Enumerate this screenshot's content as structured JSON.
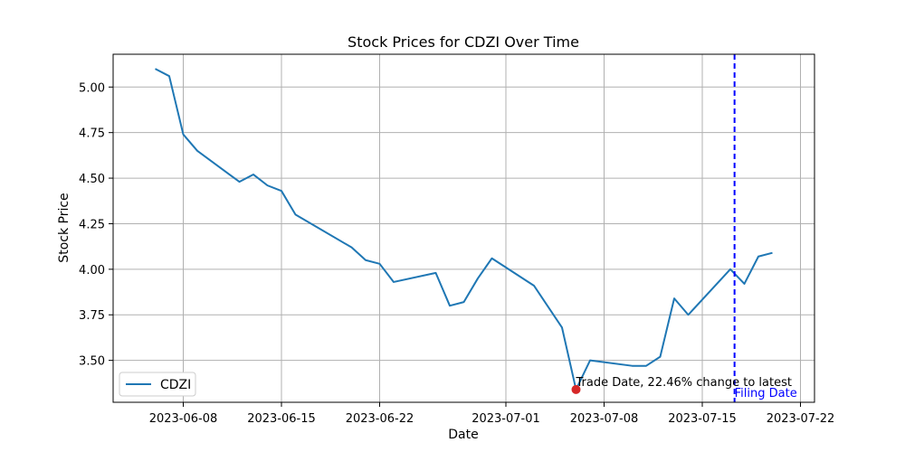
{
  "chart_data": {
    "type": "line",
    "title": "Stock Prices for CDZI Over Time",
    "xlabel": "Date",
    "ylabel": "Stock Price",
    "x_range": [
      "2023-06-03",
      "2023-07-23"
    ],
    "ylim": [
      3.27,
      5.18
    ],
    "x_ticks": [
      "2023-06-08",
      "2023-06-15",
      "2023-06-22",
      "2023-07-01",
      "2023-07-08",
      "2023-07-15",
      "2023-07-22"
    ],
    "y_ticks": [
      "3.50",
      "3.75",
      "4.00",
      "4.25",
      "4.50",
      "4.75",
      "5.00"
    ],
    "grid": true,
    "legend_position": "lower left",
    "series": [
      {
        "name": "CDZI",
        "color": "#1f77b4",
        "points": [
          {
            "date": "2023-06-06",
            "value": 5.1
          },
          {
            "date": "2023-06-07",
            "value": 5.06
          },
          {
            "date": "2023-06-08",
            "value": 4.74
          },
          {
            "date": "2023-06-09",
            "value": 4.65
          },
          {
            "date": "2023-06-12",
            "value": 4.48
          },
          {
            "date": "2023-06-13",
            "value": 4.52
          },
          {
            "date": "2023-06-14",
            "value": 4.46
          },
          {
            "date": "2023-06-15",
            "value": 4.43
          },
          {
            "date": "2023-06-16",
            "value": 4.3
          },
          {
            "date": "2023-06-20",
            "value": 4.12
          },
          {
            "date": "2023-06-21",
            "value": 4.05
          },
          {
            "date": "2023-06-22",
            "value": 4.03
          },
          {
            "date": "2023-06-23",
            "value": 3.93
          },
          {
            "date": "2023-06-26",
            "value": 3.98
          },
          {
            "date": "2023-06-27",
            "value": 3.8
          },
          {
            "date": "2023-06-28",
            "value": 3.82
          },
          {
            "date": "2023-06-29",
            "value": 3.95
          },
          {
            "date": "2023-06-30",
            "value": 4.06
          },
          {
            "date": "2023-07-03",
            "value": 3.91
          },
          {
            "date": "2023-07-05",
            "value": 3.68
          },
          {
            "date": "2023-07-06",
            "value": 3.34
          },
          {
            "date": "2023-07-07",
            "value": 3.5
          },
          {
            "date": "2023-07-10",
            "value": 3.47
          },
          {
            "date": "2023-07-11",
            "value": 3.47
          },
          {
            "date": "2023-07-12",
            "value": 3.52
          },
          {
            "date": "2023-07-13",
            "value": 3.84
          },
          {
            "date": "2023-07-14",
            "value": 3.75
          },
          {
            "date": "2023-07-17",
            "value": 4.0
          },
          {
            "date": "2023-07-18",
            "value": 3.92
          },
          {
            "date": "2023-07-19",
            "value": 4.07
          },
          {
            "date": "2023-07-20",
            "value": 4.09
          }
        ]
      }
    ],
    "trade_marker": {
      "date": "2023-07-06",
      "value": 3.34,
      "color": "#d62728",
      "label": "Trade Date, 22.46% change to latest"
    },
    "filing_line": {
      "date": "2023-07-17.3",
      "color": "#0000ff",
      "style": "dashed",
      "label": "Filing Date"
    }
  }
}
